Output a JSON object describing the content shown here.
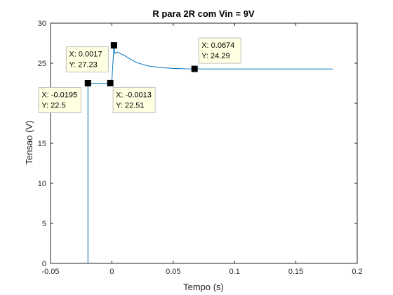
{
  "chart_data": {
    "type": "line",
    "title": "R para 2R com Vin = 9V",
    "xlabel": "Tempo (s)",
    "ylabel": "Tensao (V)",
    "xlim": [
      -0.05,
      0.2
    ],
    "ylim": [
      0,
      30
    ],
    "xticks": [
      -0.05,
      0,
      0.05,
      0.1,
      0.15,
      0.2
    ],
    "xtick_labels": [
      "-0.05",
      "0",
      "0.05",
      "0.1",
      "0.15",
      "0.2"
    ],
    "yticks": [
      0,
      5,
      10,
      15,
      20,
      25,
      30
    ],
    "ytick_labels": [
      "0",
      "5",
      "10",
      "15",
      "20",
      "25",
      "30"
    ],
    "grid": false,
    "line_color": "#0072BD",
    "series": [
      {
        "x": [
          -0.0195,
          -0.0195,
          -0.0195,
          -0.0013,
          0.0,
          0.0017,
          0.0025,
          0.004,
          0.006,
          0.008,
          0.01,
          0.012,
          0.015,
          0.02,
          0.025,
          0.03,
          0.04,
          0.05,
          0.06,
          0.0674,
          0.08,
          0.1,
          0.12,
          0.14,
          0.16,
          0.18
        ],
        "y": [
          0,
          22.5,
          22.5,
          22.51,
          22.8,
          27.23,
          26.2,
          26.4,
          26.3,
          26.1,
          26.0,
          25.8,
          25.5,
          25.1,
          24.85,
          24.65,
          24.45,
          24.35,
          24.3,
          24.29,
          24.28,
          24.28,
          24.28,
          24.28,
          24.28,
          24.28
        ]
      }
    ],
    "datatips": [
      {
        "x_label": "X: -0.0195",
        "y_label": "Y: 22.5",
        "x": -0.0195,
        "y": 22.5,
        "side": "below-left"
      },
      {
        "x_label": "X: 0.0017",
        "y_label": "Y: 27.23",
        "x": 0.0017,
        "y": 27.23,
        "side": "left"
      },
      {
        "x_label": "X: -0.0013",
        "y_label": "Y: 22.51",
        "x": -0.0013,
        "y": 22.51,
        "side": "below-right"
      },
      {
        "x_label": "X: 0.0674",
        "y_label": "Y: 24.29",
        "x": 0.0674,
        "y": 24.29,
        "side": "above-right"
      }
    ]
  }
}
